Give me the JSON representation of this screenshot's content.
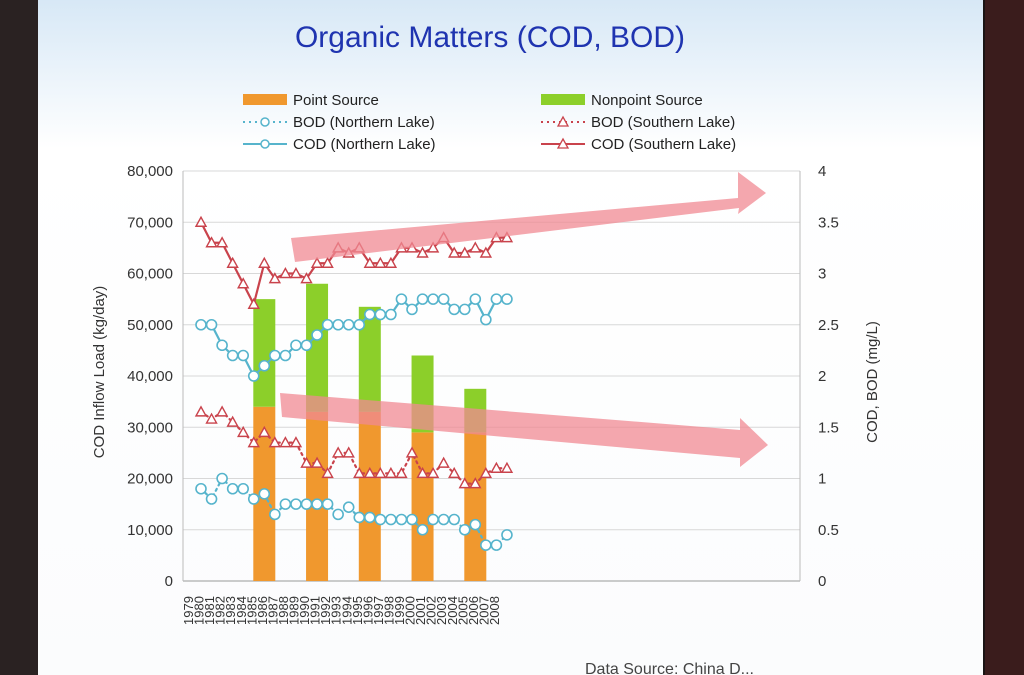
{
  "chart_data": {
    "type": "bar",
    "title": "Organic Matters (COD, BOD)",
    "ylabel_left": "COD Inflow Load (kg/day)",
    "ylabel_right": "COD, BOD (mg/L)",
    "ylim_left": [
      0,
      80000
    ],
    "ylim_right": [
      0,
      4
    ],
    "yticks_left": [
      "0",
      "10,000",
      "20,000",
      "30,000",
      "40,000",
      "50,000",
      "60,000",
      "70,000",
      "80,000"
    ],
    "yticks_right": [
      "0",
      "0.5",
      "1",
      "1.5",
      "2",
      "2.5",
      "3",
      "3.5",
      "4"
    ],
    "x": [
      "1979",
      "1980",
      "1981",
      "1982",
      "1983",
      "1984",
      "1985",
      "1986",
      "1987",
      "1988",
      "1989",
      "1990",
      "1991",
      "1992",
      "1993",
      "1994",
      "1995",
      "1996",
      "1997",
      "1998",
      "1999",
      "2000",
      "2001",
      "2002",
      "2003",
      "2004",
      "2005",
      "2006",
      "2007",
      "2008"
    ],
    "legend_placement": "top",
    "grid": true,
    "bars": [
      {
        "year": "1985",
        "point": 34000,
        "nonpoint": 21000
      },
      {
        "year": "1990",
        "point": 33000,
        "nonpoint": 25000
      },
      {
        "year": "1995",
        "point": 33000,
        "nonpoint": 20500
      },
      {
        "year": "2000",
        "point": 29000,
        "nonpoint": 15000
      },
      {
        "year": "2005",
        "point": 29000,
        "nonpoint": 8500
      }
    ],
    "bar_series": [
      {
        "name": "Point Source",
        "color": "#f0982e"
      },
      {
        "name": "Nonpoint Source",
        "color": "#8ccf2a"
      }
    ],
    "series": [
      {
        "name": "BOD (Northern Lake)",
        "color": "#56b4cc",
        "marker": "circle",
        "style": "dotted",
        "values": [
          0.9,
          0.8,
          1.0,
          0.9,
          0.9,
          0.8,
          0.85,
          0.65,
          0.75,
          0.75,
          0.75,
          0.75,
          0.75,
          0.65,
          0.72,
          0.62,
          0.62,
          0.6,
          0.6,
          0.6,
          0.6,
          0.5,
          0.6,
          0.6,
          0.6,
          0.5,
          0.55,
          0.35,
          0.35,
          0.45
        ]
      },
      {
        "name": "COD (Northern Lake)",
        "color": "#56b4cc",
        "marker": "circle",
        "style": "solid",
        "values": [
          2.5,
          2.5,
          2.3,
          2.2,
          2.2,
          2.0,
          2.1,
          2.2,
          2.2,
          2.3,
          2.3,
          2.4,
          2.5,
          2.5,
          2.5,
          2.5,
          2.6,
          2.6,
          2.6,
          2.75,
          2.65,
          2.75,
          2.75,
          2.75,
          2.65,
          2.65,
          2.75,
          2.55,
          2.75,
          2.75
        ]
      },
      {
        "name": "BOD (Southern Lake)",
        "color": "#c9434c",
        "marker": "triangle",
        "style": "dotted",
        "values": [
          1.65,
          1.58,
          1.65,
          1.55,
          1.45,
          1.35,
          1.45,
          1.35,
          1.35,
          1.35,
          1.15,
          1.15,
          1.05,
          1.25,
          1.25,
          1.05,
          1.05,
          1.05,
          1.05,
          1.05,
          1.25,
          1.05,
          1.05,
          1.15,
          1.05,
          0.95,
          0.95,
          1.05,
          1.1,
          1.1
        ]
      },
      {
        "name": "COD (Southern Lake)",
        "color": "#c9434c",
        "marker": "triangle",
        "style": "solid",
        "values": [
          3.5,
          3.3,
          3.3,
          3.1,
          2.9,
          2.7,
          3.1,
          2.95,
          3.0,
          3.0,
          2.95,
          3.1,
          3.1,
          3.25,
          3.2,
          3.25,
          3.1,
          3.1,
          3.1,
          3.25,
          3.25,
          3.2,
          3.25,
          3.35,
          3.2,
          3.2,
          3.25,
          3.2,
          3.35,
          3.35
        ]
      }
    ],
    "source_text": "Data Source: China D..."
  }
}
